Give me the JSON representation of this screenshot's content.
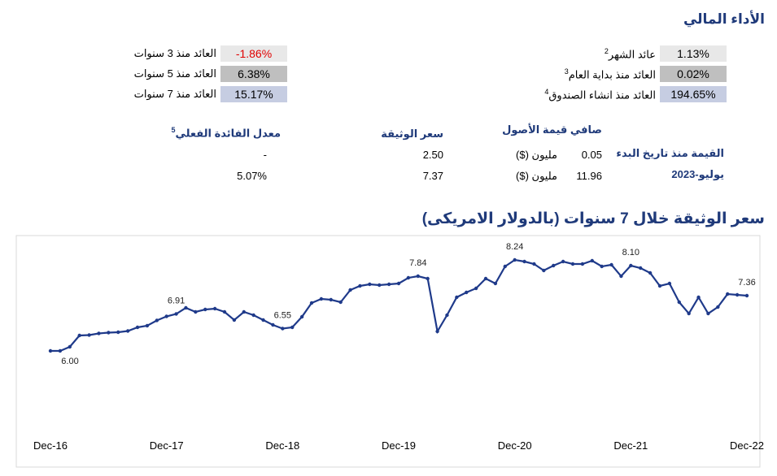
{
  "header": {
    "title": "الأداء المالي"
  },
  "returns": [
    {
      "label": "عائد الشهر",
      "note": "2",
      "value": "1.13%",
      "color": "#e8e8e8",
      "text_color": "#000000"
    },
    {
      "label": "العائد منذ بداية العام",
      "note": "3",
      "value": "0.02%",
      "color": "#bfbfbf",
      "text_color": "#000000"
    },
    {
      "label": "العائد منذ انشاء الصندوق",
      "note": "4",
      "value": "194.65%",
      "color": "#c6cde2",
      "text_color": "#000000"
    },
    {
      "label": "العائد منذ 3 سنوات",
      "note": null,
      "value": "-1.86%",
      "color": "#e8e8e8",
      "text_color": "#e00000"
    },
    {
      "label": "العائد منذ 5 سنوات",
      "note": null,
      "value": "6.38%",
      "color": "#bfbfbf",
      "text_color": "#000000"
    },
    {
      "label": "العائد منذ 7 سنوات",
      "note": null,
      "value": "15.17%",
      "color": "#c6cde2",
      "text_color": "#000000"
    }
  ],
  "table": {
    "headers": {
      "nav": "صافي قيمة الأصول",
      "price": "سعر الوثيقة",
      "rate": "معدل الفائدة الفعلي",
      "rate_note": "5"
    },
    "rows": [
      {
        "label": "القيمة منذ تاريخ البدء",
        "nav": "0.05",
        "unit": "مليون ($)",
        "price": "2.50",
        "rate": "-"
      },
      {
        "label": "يوليو-2023",
        "nav": "11.96",
        "unit": "مليون ($)",
        "price": "7.37",
        "rate": "5.07%"
      }
    ]
  },
  "chart_data": {
    "type": "line",
    "title": "سعر الوثيقة خلال 7 سنوات (بالدولار الامريكى)",
    "color": "#1f3a8a",
    "values": [
      6.0,
      6.0,
      6.1,
      6.38,
      6.39,
      6.43,
      6.45,
      6.46,
      6.49,
      6.58,
      6.62,
      6.75,
      6.85,
      6.91,
      7.06,
      6.96,
      7.02,
      7.04,
      6.96,
      6.76,
      6.96,
      6.88,
      6.76,
      6.64,
      6.55,
      6.58,
      6.84,
      7.18,
      7.28,
      7.26,
      7.2,
      7.5,
      7.6,
      7.64,
      7.62,
      7.64,
      7.66,
      7.8,
      7.84,
      7.78,
      6.48,
      6.88,
      7.32,
      7.44,
      7.54,
      7.78,
      7.66,
      8.08,
      8.24,
      8.2,
      8.14,
      7.98,
      8.1,
      8.2,
      8.14,
      8.14,
      8.22,
      8.08,
      8.12,
      7.84,
      8.1,
      8.04,
      7.92,
      7.6,
      7.66,
      7.2,
      6.92,
      7.32,
      6.92,
      7.08,
      7.4,
      7.38,
      7.36
    ],
    "value_labels": [
      "6.00",
      null,
      null,
      null,
      null,
      null,
      null,
      null,
      null,
      null,
      null,
      null,
      null,
      "6.91",
      null,
      null,
      null,
      null,
      null,
      null,
      null,
      null,
      null,
      null,
      "6.55",
      null,
      null,
      null,
      null,
      null,
      null,
      null,
      null,
      null,
      null,
      null,
      null,
      null,
      "7.84",
      null,
      null,
      null,
      null,
      null,
      null,
      null,
      null,
      null,
      "8.24",
      null,
      null,
      null,
      null,
      null,
      null,
      null,
      null,
      null,
      null,
      null,
      "8.10",
      null,
      null,
      null,
      null,
      null,
      null,
      null,
      null,
      null,
      null,
      null,
      "7.36"
    ],
    "xticks": [
      {
        "value": 0,
        "label": "Dec-16"
      },
      {
        "value": 12,
        "label": "Dec-17"
      },
      {
        "value": 24,
        "label": "Dec-18"
      },
      {
        "value": 36,
        "label": "Dec-19"
      },
      {
        "value": 48,
        "label": "Dec-20"
      },
      {
        "value": 60,
        "label": "Dec-21"
      },
      {
        "value": 72,
        "label": "Dec-22"
      }
    ]
  }
}
